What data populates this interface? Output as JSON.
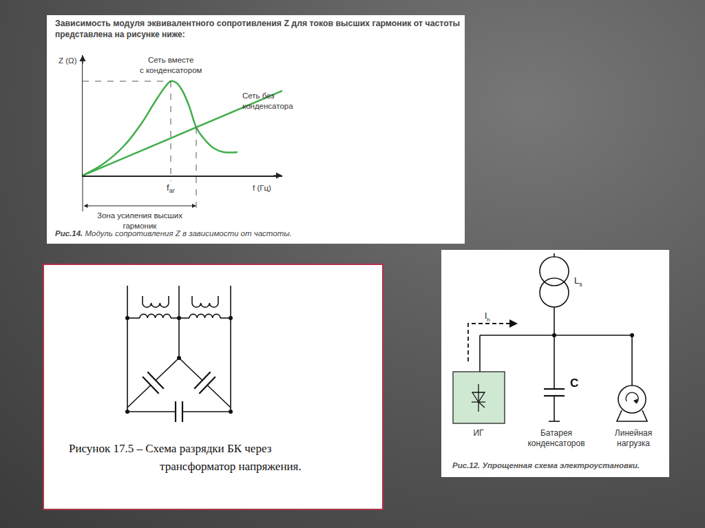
{
  "chart_data": {
    "type": "line",
    "title": [
      "Зависимость модуля эквивалентного сопротивления Z для токов высших гармоник от частоты",
      "представлена на рисунке ниже:"
    ],
    "caption_number": "Рис.14.",
    "caption": "Модуль сопротивления Z в зависимости от частоты.",
    "y_label": "Z (Ω)",
    "x_label": "f (Гц)",
    "xlim": [
      0,
      290
    ],
    "ylim": [
      0,
      175
    ],
    "xticks": [],
    "yticks": [],
    "tick_labels": false,
    "grid": false,
    "series": [
      {
        "label": [
          "Сеть вместе",
          "с конденсатором"
        ],
        "color": "#3fae49",
        "x": [
          0,
          30,
          60,
          85,
          105,
          120,
          128,
          136,
          145,
          155,
          165,
          175,
          190,
          205,
          225
        ],
        "values": [
          0,
          17,
          43,
          75,
          107,
          129,
          137,
          135,
          123,
          100,
          70,
          55,
          40,
          34,
          34
        ]
      },
      {
        "label": [
          "Сеть без",
          "конденсатора"
        ],
        "color": "#3fae49",
        "x": [
          0,
          290
        ],
        "values": [
          0,
          123
        ]
      }
    ],
    "resonance": {
      "label": "f",
      "subscript": "ar",
      "x": 128,
      "y": 137
    },
    "zone": {
      "label": [
        "Зона усиления высших",
        "гармоник"
      ],
      "x": 165,
      "y": 70
    }
  },
  "diagrams": [
    {
      "caption": [
        "Рисунок 17.5 – Схема разрядки БК через",
        "трансформатор напряжения."
      ]
    },
    {
      "transformer": {
        "label": "L",
        "subscript": "s"
      },
      "current": {
        "label": "I",
        "subscript": "h"
      },
      "capacitor": "C",
      "source": "ИГ",
      "bank": [
        "Батарея",
        "конденсаторов"
      ],
      "load": [
        "Линейная",
        "нагрузка"
      ],
      "caption_number": "Рис.12.",
      "caption": "Упрощенная схема электроустановки."
    }
  ]
}
